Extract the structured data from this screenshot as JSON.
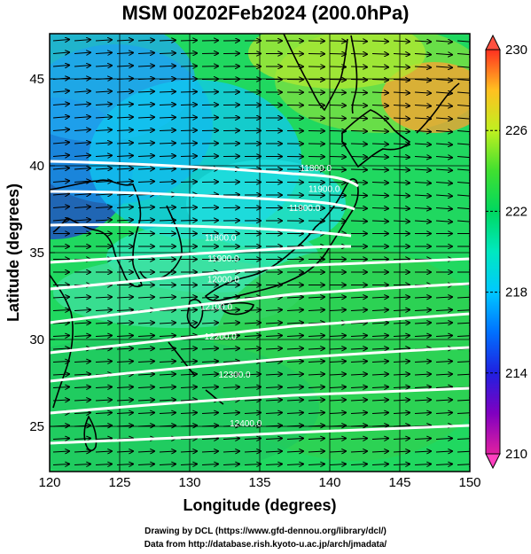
{
  "title": "MSM 00Z02Feb2024 (200.0hPa)",
  "credits": {
    "line1": "Drawing by DCL (https://www.gfd-dennou.org/library/dcl/)",
    "line2": "Data from http://database.rish.kyoto-u.ac.jp/arch/jmadata/"
  },
  "map": {
    "xlabel": "Longitude (degrees)",
    "ylabel": "Latitude  (degrees)",
    "lon_range": [
      120,
      150
    ],
    "lat_range": [
      22.4,
      47.6
    ],
    "lon_ticks": [
      120,
      125,
      130,
      135,
      140,
      145,
      150
    ],
    "lat_ticks": [
      25,
      30,
      35,
      40,
      45
    ],
    "gridlines": true
  },
  "colorbar": {
    "min": 210,
    "max": 230,
    "labels": [
      230,
      226,
      222,
      218,
      214,
      210
    ],
    "colors": [
      "#e02090",
      "#8000c0",
      "#2020e0",
      "#0080ff",
      "#00d8ff",
      "#00e8b0",
      "#00d860",
      "#30e030",
      "#a0f020",
      "#f0f020",
      "#ffa020",
      "#ff4020"
    ]
  },
  "contours": {
    "labels": [
      {
        "text": "11800.0",
        "lon": 139,
        "lat": 39.7
      },
      {
        "text": "11900.0",
        "lon": 139.6,
        "lat": 38.5
      },
      {
        "text": "11900.0",
        "lon": 138.2,
        "lat": 37.4
      },
      {
        "text": "11800.0",
        "lon": 132.2,
        "lat": 35.7
      },
      {
        "text": "11900.0",
        "lon": 132.4,
        "lat": 34.5
      },
      {
        "text": "12000.0",
        "lon": 132.4,
        "lat": 33.3
      },
      {
        "text": "12100.0",
        "lon": 131.9,
        "lat": 31.7
      },
      {
        "text": "12200.0",
        "lon": 132.2,
        "lat": 30.0
      },
      {
        "text": "12300.0",
        "lon": 133.2,
        "lat": 27.8
      },
      {
        "text": "12400.0",
        "lon": 134.0,
        "lat": 25.0
      }
    ]
  }
}
